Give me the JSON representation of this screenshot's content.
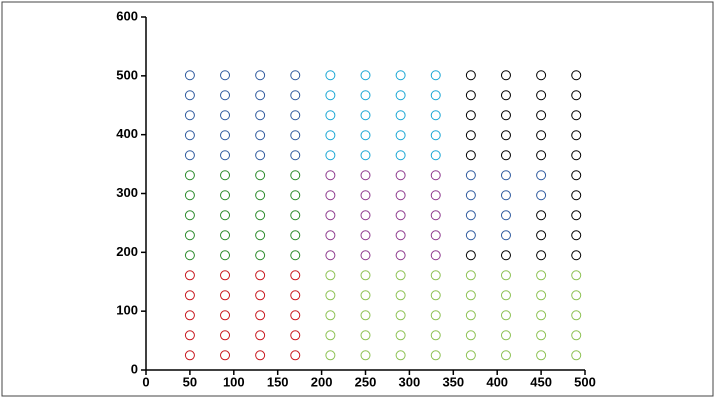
{
  "chart_data": {
    "type": "scatter",
    "xlim": [
      0,
      500
    ],
    "xticks": [
      0,
      50,
      100,
      150,
      200,
      250,
      300,
      350,
      400,
      450,
      500
    ],
    "ylim": [
      0,
      600
    ],
    "yticks": [
      0,
      100,
      200,
      300,
      400,
      500,
      600
    ],
    "series": [
      {
        "color": "#c8161d",
        "x": [
          50,
          50,
          50,
          50,
          50,
          90,
          90,
          90,
          90,
          90,
          130,
          130,
          130,
          130,
          130,
          170,
          170,
          170,
          170,
          170
        ],
        "values": [
          25,
          59,
          93,
          127,
          161,
          25,
          59,
          93,
          127,
          161,
          25,
          59,
          93,
          127,
          161,
          25,
          59,
          93,
          127,
          161
        ]
      },
      {
        "color": "#2a8a2a",
        "x": [
          50,
          50,
          50,
          50,
          50,
          90,
          90,
          90,
          90,
          90,
          130,
          130,
          130,
          130,
          130,
          170,
          170,
          170,
          170,
          170
        ],
        "values": [
          195,
          229,
          263,
          297,
          331,
          195,
          229,
          263,
          297,
          331,
          195,
          229,
          263,
          297,
          331,
          195,
          229,
          263,
          297,
          331
        ]
      },
      {
        "color": "#2f5a9e",
        "x": [
          50,
          50,
          50,
          50,
          50,
          90,
          90,
          90,
          90,
          90,
          130,
          130,
          130,
          130,
          130,
          170,
          170,
          170,
          170,
          170,
          370,
          410,
          370,
          410,
          370,
          410,
          450,
          370,
          410,
          450
        ],
        "values": [
          365,
          399,
          433,
          467,
          501,
          365,
          399,
          433,
          467,
          501,
          365,
          399,
          433,
          467,
          501,
          365,
          399,
          433,
          467,
          501,
          229,
          229,
          263,
          263,
          297,
          297,
          297,
          331,
          331,
          331
        ]
      },
      {
        "color": "#8cc152",
        "x": [
          210,
          210,
          210,
          210,
          210,
          250,
          250,
          250,
          250,
          250,
          290,
          290,
          290,
          290,
          290,
          330,
          330,
          330,
          330,
          330,
          370,
          370,
          370,
          370,
          370,
          410,
          410,
          410,
          410,
          410,
          450,
          450,
          450,
          450,
          450,
          490,
          490,
          490,
          490,
          490
        ],
        "values": [
          25,
          59,
          93,
          127,
          161,
          25,
          59,
          93,
          127,
          161,
          25,
          59,
          93,
          127,
          161,
          25,
          59,
          93,
          127,
          161,
          25,
          59,
          93,
          127,
          161,
          25,
          59,
          93,
          127,
          161,
          25,
          59,
          93,
          127,
          161,
          25,
          59,
          93,
          127,
          161
        ]
      },
      {
        "color": "#8e3a8e",
        "x": [
          210,
          210,
          210,
          210,
          210,
          250,
          250,
          250,
          250,
          250,
          290,
          290,
          290,
          290,
          290,
          330,
          330,
          330,
          330,
          330
        ],
        "values": [
          195,
          229,
          263,
          297,
          331,
          195,
          229,
          263,
          297,
          331,
          195,
          229,
          263,
          297,
          331,
          195,
          229,
          263,
          297,
          331
        ]
      },
      {
        "color": "#1aa7d4",
        "x": [
          210,
          210,
          210,
          210,
          210,
          250,
          250,
          250,
          250,
          250,
          290,
          290,
          290,
          290,
          290,
          330,
          330,
          330,
          330,
          330
        ],
        "values": [
          365,
          399,
          433,
          467,
          501,
          365,
          399,
          433,
          467,
          501,
          365,
          399,
          433,
          467,
          501,
          365,
          399,
          433,
          467,
          501
        ]
      },
      {
        "color": "#000000",
        "x": [
          370,
          370,
          370,
          370,
          370,
          410,
          410,
          410,
          410,
          410,
          450,
          450,
          450,
          450,
          450,
          490,
          490,
          490,
          490,
          490,
          370,
          410,
          450,
          490,
          450,
          490,
          450,
          490,
          490,
          490
        ],
        "values": [
          365,
          399,
          433,
          467,
          501,
          365,
          399,
          433,
          467,
          501,
          365,
          399,
          433,
          467,
          501,
          365,
          399,
          433,
          467,
          501,
          195,
          195,
          195,
          195,
          229,
          229,
          263,
          263,
          297,
          331
        ]
      }
    ]
  }
}
